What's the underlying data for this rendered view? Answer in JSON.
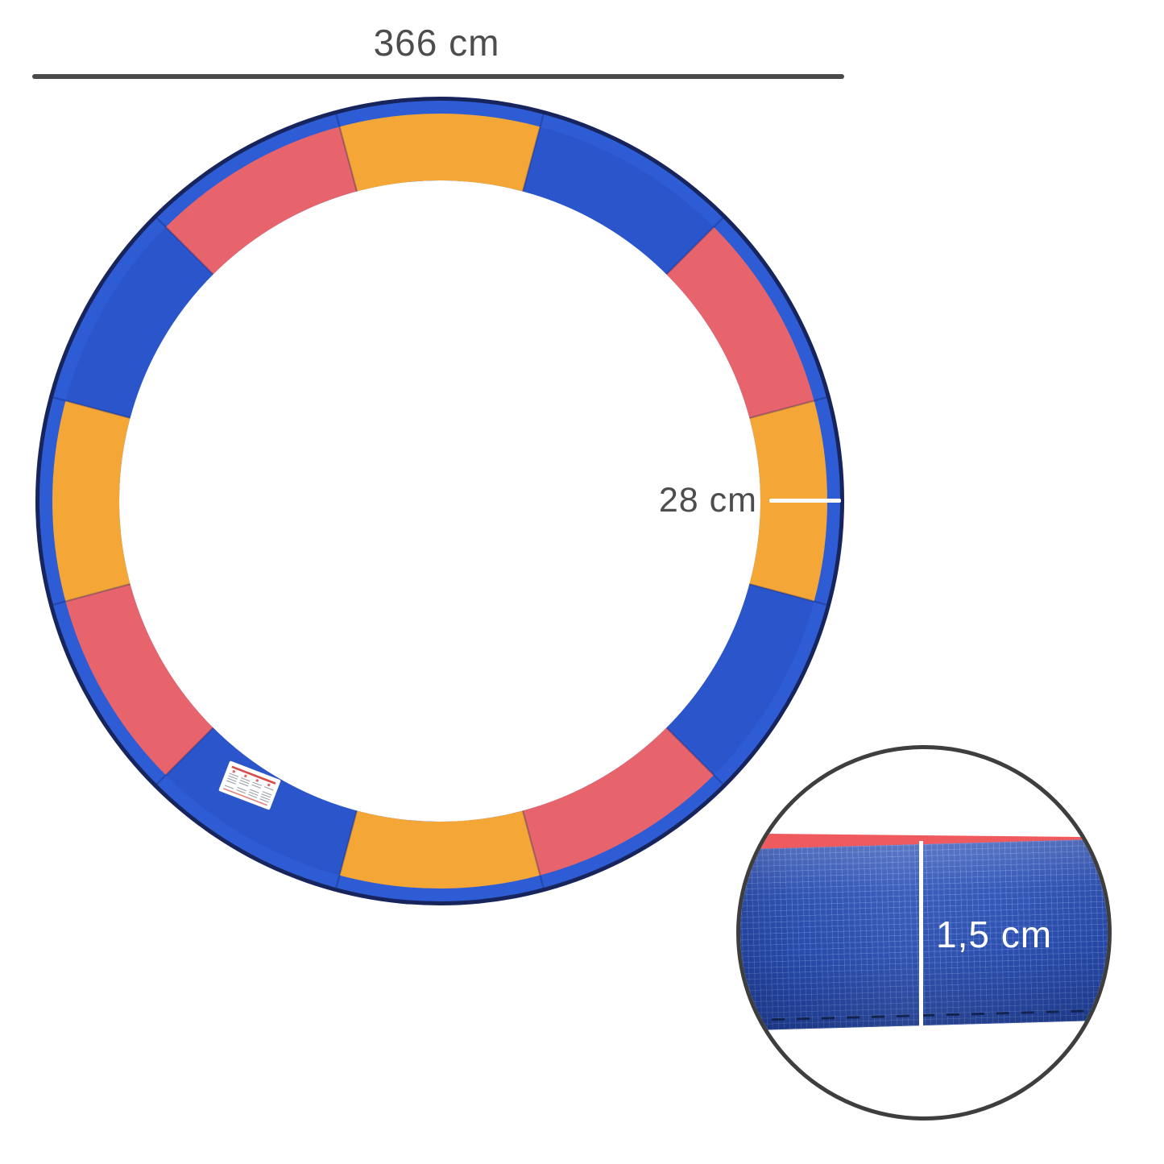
{
  "dimensions": {
    "overall_width": "366 cm",
    "pad_width": "28 cm",
    "thickness": "1,5 cm"
  },
  "ring": {
    "segments": [
      "orange",
      "blue",
      "red",
      "orange",
      "blue",
      "red",
      "orange",
      "blue",
      "red",
      "orange",
      "blue",
      "red"
    ],
    "fabric": {
      "orange": "#f4a636",
      "blue": "#2b55cb",
      "red": "#e8646c"
    },
    "rim_blue": "#2d5cd4",
    "rim_dark": "#17255c",
    "boundary_shadow": "rgba(12,26,92,0.30)"
  },
  "annotation": {
    "line_color": "#4a4a4a",
    "text_color": "#4d4d4d",
    "measure_line_color": "#ffffff"
  },
  "inset": {
    "border_color": "#3e3e3e",
    "tube_blue": "#2a4fb3",
    "grid_line_color": "rgba(150,180,255,0.30)",
    "red_strip": "#ee5a5e",
    "stitch_color": "#101f48"
  },
  "warning_label": {
    "background": "#ffffff",
    "stripe_color": "#d84b4b",
    "text_color": "#9aa0a8"
  }
}
